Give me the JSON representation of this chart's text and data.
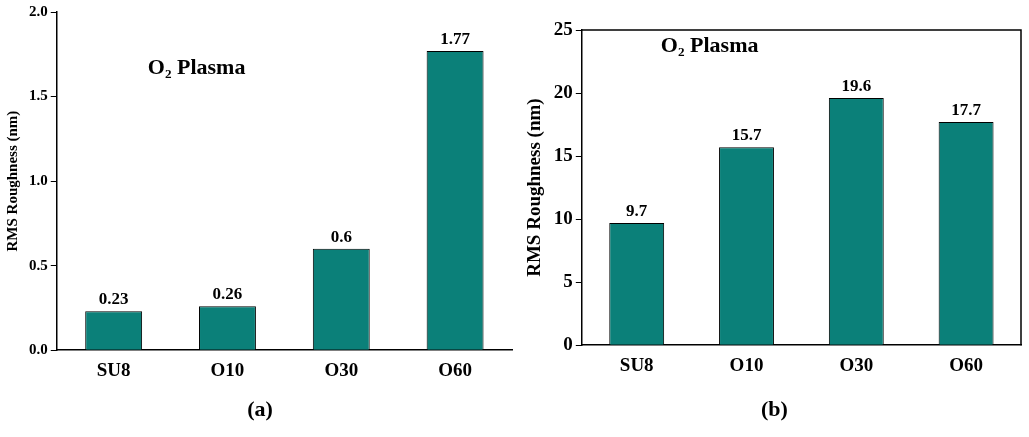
{
  "chart_data": [
    {
      "type": "bar",
      "categories": [
        "SU8",
        "O10",
        "O30",
        "O60"
      ],
      "values": [
        0.23,
        0.26,
        0.6,
        1.77
      ],
      "color": "#0b8079",
      "ylabel": "RMS Roughness (nm)",
      "ylim": [
        0,
        2.0
      ],
      "yticks": [
        {
          "value": 0,
          "label": "0.0"
        },
        {
          "value": 0.5,
          "label": "0.5"
        },
        {
          "value": 1,
          "label": "1.0"
        },
        {
          "value": 1.5,
          "label": "1.5"
        },
        {
          "value": 2,
          "label": "2.0"
        }
      ],
      "data_labels": true,
      "grid": false,
      "legend": false,
      "annotations": [
        "O₂ Plasma",
        "(a)"
      ]
    },
    {
      "type": "bar",
      "categories": [
        "SU8",
        "O10",
        "O30",
        "O60"
      ],
      "values": [
        9.7,
        15.7,
        19.6,
        17.7
      ],
      "color": "#0b8079",
      "ylabel": "RMS Roughness (nm)",
      "ylim": [
        0,
        25
      ],
      "yticks": [
        0,
        5,
        10,
        15,
        20,
        25
      ],
      "data_labels": true,
      "grid": false,
      "legend": false,
      "annotations": [
        "O₂ Plasma",
        "(b)"
      ]
    }
  ]
}
